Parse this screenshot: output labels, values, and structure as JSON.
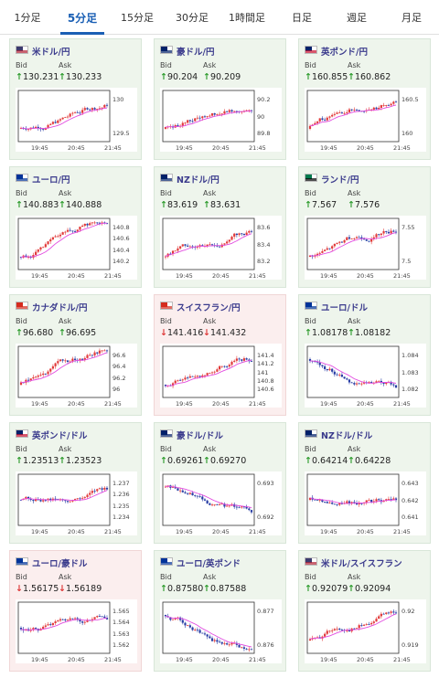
{
  "tabs": [
    "1分足",
    "5分足",
    "15分足",
    "30分足",
    "1時間足",
    "日足",
    "週足",
    "月足"
  ],
  "active_tab": "5分足",
  "labels": {
    "bid": "Bid",
    "ask": "Ask"
  },
  "colors": {
    "up_arrow": "#2a9a2a",
    "down_arrow": "#d33333",
    "candle_up": "#e23b3b",
    "candle_down": "#2a3fa6",
    "ma_line": "#e24be0",
    "card_up_bg": "#eef5ec",
    "card_down_bg": "#fbeeee"
  },
  "x_ticks": [
    "19:45",
    "20:45",
    "21:45"
  ],
  "cards": [
    {
      "pair": "米ドル/円",
      "flag": "us-jp-flag-icon",
      "bid_dir": "up",
      "bid": "130.231",
      "ask_dir": "up",
      "ask": "130.233",
      "bg": "up",
      "y_ticks": [
        "130",
        "129.5"
      ],
      "trend": "up"
    },
    {
      "pair": "豪ドル/円",
      "flag": "au-jp-flag-icon",
      "bid_dir": "up",
      "bid": "90.204",
      "ask_dir": "up",
      "ask": "90.209",
      "bg": "up",
      "y_ticks": [
        "90.2",
        "90",
        "89.8"
      ],
      "trend": "up"
    },
    {
      "pair": "英ポンド/円",
      "flag": "gb-jp-flag-icon",
      "bid_dir": "up",
      "bid": "160.855",
      "ask_dir": "up",
      "ask": "160.862",
      "bg": "up",
      "y_ticks": [
        "160.5",
        "160"
      ],
      "trend": "up"
    },
    {
      "pair": "ユーロ/円",
      "flag": "eu-jp-flag-icon",
      "bid_dir": "up",
      "bid": "140.883",
      "ask_dir": "up",
      "ask": "140.888",
      "bg": "up",
      "y_ticks": [
        "140.8",
        "140.6",
        "140.4",
        "140.2"
      ],
      "trend": "up"
    },
    {
      "pair": "NZドル/円",
      "flag": "nz-jp-flag-icon",
      "bid_dir": "up",
      "bid": "83.619",
      "ask_dir": "up",
      "ask": "83.631",
      "bg": "up",
      "y_ticks": [
        "83.6",
        "83.4",
        "83.2"
      ],
      "trend": "up"
    },
    {
      "pair": "ランド/円",
      "flag": "za-jp-flag-icon",
      "bid_dir": "up",
      "bid": "7.567",
      "ask_dir": "up",
      "ask": "7.576",
      "bg": "up",
      "y_ticks": [
        "7.55",
        "7.5"
      ],
      "trend": "up"
    },
    {
      "pair": "カナダドル/円",
      "flag": "ca-jp-flag-icon",
      "bid_dir": "up",
      "bid": "96.680",
      "ask_dir": "up",
      "ask": "96.695",
      "bg": "up",
      "y_ticks": [
        "96.6",
        "96.4",
        "96.2",
        "96"
      ],
      "trend": "up"
    },
    {
      "pair": "スイスフラン/円",
      "flag": "ch-jp-flag-icon",
      "bid_dir": "down",
      "bid": "141.416",
      "ask_dir": "down",
      "ask": "141.432",
      "bg": "down",
      "y_ticks": [
        "141.4",
        "141.2",
        "141",
        "140.8",
        "140.6"
      ],
      "trend": "up"
    },
    {
      "pair": "ユーロ/ドル",
      "flag": "eu-us-flag-icon",
      "bid_dir": "up",
      "bid": "1.08178",
      "ask_dir": "up",
      "ask": "1.08182",
      "bg": "up",
      "y_ticks": [
        "1.084",
        "1.083",
        "1.082"
      ],
      "trend": "down"
    },
    {
      "pair": "英ポンド/ドル",
      "flag": "gb-us-flag-icon",
      "bid_dir": "up",
      "bid": "1.23513",
      "ask_dir": "up",
      "ask": "1.23523",
      "bg": "up",
      "y_ticks": [
        "1.237",
        "1.236",
        "1.235",
        "1.234"
      ],
      "trend": "flat"
    },
    {
      "pair": "豪ドル/ドル",
      "flag": "au-us-flag-icon",
      "bid_dir": "up",
      "bid": "0.69261",
      "ask_dir": "up",
      "ask": "0.69270",
      "bg": "up",
      "y_ticks": [
        "0.693",
        "0.692"
      ],
      "trend": "down"
    },
    {
      "pair": "NZドル/ドル",
      "flag": "nz-us-flag-icon",
      "bid_dir": "up",
      "bid": "0.64214",
      "ask_dir": "up",
      "ask": "0.64228",
      "bg": "up",
      "y_ticks": [
        "0.643",
        "0.642",
        "0.641"
      ],
      "trend": "flat"
    },
    {
      "pair": "ユーロ/豪ドル",
      "flag": "eu-au-flag-icon",
      "bid_dir": "down",
      "bid": "1.56175",
      "ask_dir": "down",
      "ask": "1.56189",
      "bg": "down",
      "y_ticks": [
        "1.565",
        "1.564",
        "1.563",
        "1.562"
      ],
      "trend": "flat"
    },
    {
      "pair": "ユーロ/英ポンド",
      "flag": "eu-gb-flag-icon",
      "bid_dir": "up",
      "bid": "0.87580",
      "ask_dir": "up",
      "ask": "0.87588",
      "bg": "up",
      "y_ticks": [
        "0.877",
        "0.876"
      ],
      "trend": "down"
    },
    {
      "pair": "米ドル/スイスフラン",
      "flag": "us-ch-flag-icon",
      "bid_dir": "up",
      "bid": "0.92079",
      "ask_dir": "up",
      "ask": "0.92094",
      "bg": "up",
      "y_ticks": [
        "0.92",
        "0.919"
      ],
      "trend": "up"
    }
  ]
}
